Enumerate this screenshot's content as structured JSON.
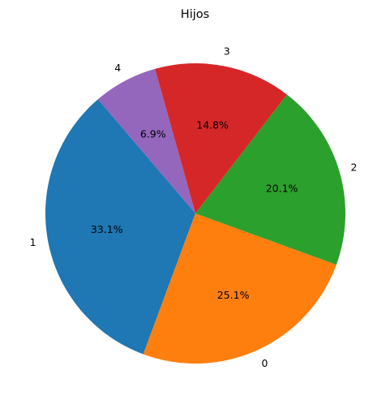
{
  "chart_data": {
    "type": "pie",
    "title": "Hijos",
    "slices": [
      {
        "label": "1",
        "value": 33.1,
        "pct_text": "33.1%",
        "color": "#1f77b4"
      },
      {
        "label": "0",
        "value": 25.1,
        "pct_text": "25.1%",
        "color": "#ff7f0e"
      },
      {
        "label": "2",
        "value": 20.1,
        "pct_text": "20.1%",
        "color": "#2ca02c"
      },
      {
        "label": "3",
        "value": 14.8,
        "pct_text": "14.8%",
        "color": "#d62728"
      },
      {
        "label": "4",
        "value": 6.9,
        "pct_text": "6.9%",
        "color": "#9467bd"
      }
    ]
  }
}
